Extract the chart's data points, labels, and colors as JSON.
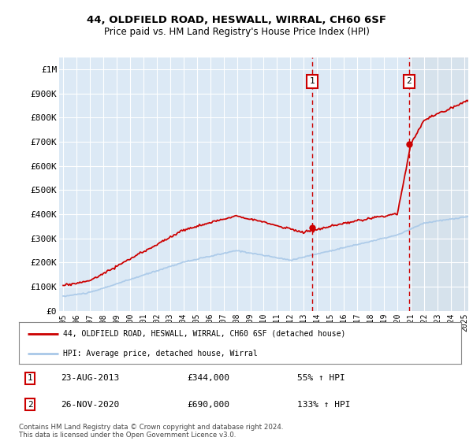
{
  "title1": "44, OLDFIELD ROAD, HESWALL, WIRRAL, CH60 6SF",
  "title2": "Price paid vs. HM Land Registry's House Price Index (HPI)",
  "ylim": [
    0,
    1050000
  ],
  "yticks": [
    0,
    100000,
    200000,
    300000,
    400000,
    500000,
    600000,
    700000,
    800000,
    900000,
    1000000
  ],
  "ytick_labels": [
    "£0",
    "£100K",
    "£200K",
    "£300K",
    "£400K",
    "£500K",
    "£600K",
    "£700K",
    "£800K",
    "£900K",
    "£1M"
  ],
  "background_color": "#ffffff",
  "plot_bg_color": "#dce9f5",
  "grid_color": "#ffffff",
  "hpi_line_color": "#a8c8e8",
  "price_line_color": "#cc0000",
  "sale1_x": 2013.625,
  "sale1_price": 344000,
  "sale1_label": "1",
  "sale2_x": 2020.875,
  "sale2_price": 690000,
  "sale2_label": "2",
  "legend_entry1": "44, OLDFIELD ROAD, HESWALL, WIRRAL, CH60 6SF (detached house)",
  "legend_entry2": "HPI: Average price, detached house, Wirral",
  "note1_num": "1",
  "note1_date": "23-AUG-2013",
  "note1_price": "£344,000",
  "note1_hpi": "55% ↑ HPI",
  "note2_num": "2",
  "note2_date": "26-NOV-2020",
  "note2_price": "£690,000",
  "note2_hpi": "133% ↑ HPI",
  "footer": "Contains HM Land Registry data © Crown copyright and database right 2024.\nThis data is licensed under the Open Government Licence v3.0.",
  "x_start_year": 1995,
  "x_end_year": 2025
}
